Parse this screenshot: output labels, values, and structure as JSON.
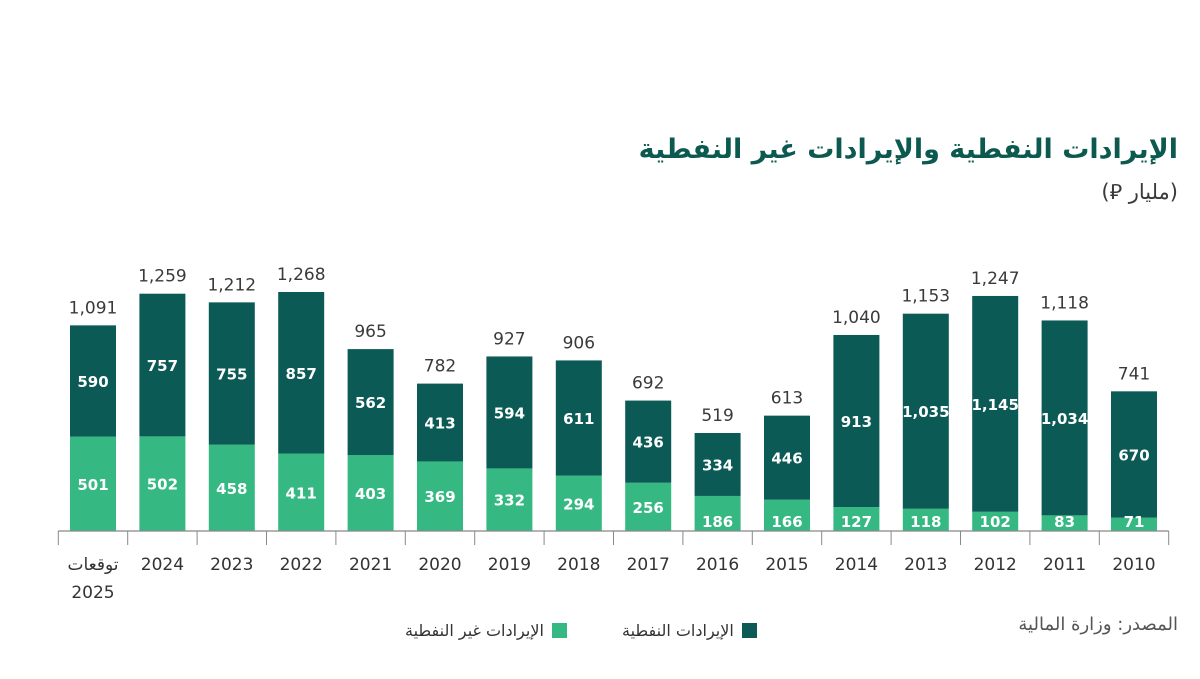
{
  "title": "الإيرادات النفطية والإيرادات غير النفطية",
  "subtitle": "(مليار ⃁)",
  "source": "المصدر: وزارة المالية",
  "colors": {
    "oil": "#0c5a55",
    "non_oil": "#35b882",
    "axis": "#333333",
    "totals": "#3a3a3a"
  },
  "chart_data": {
    "type": "bar",
    "stacked": true,
    "x_direction": "right-to-left",
    "categories": [
      "2010",
      "2011",
      "2012",
      "2013",
      "2014",
      "2015",
      "2016",
      "2017",
      "2018",
      "2019",
      "2020",
      "2021",
      "2022",
      "2023",
      "2024",
      "توقعات 2025"
    ],
    "series": [
      {
        "name": "الإيرادات غير النفطية",
        "key": "non_oil",
        "values": [
          71,
          83,
          102,
          118,
          127,
          166,
          186,
          256,
          294,
          332,
          369,
          403,
          411,
          458,
          502,
          501
        ],
        "labels": [
          "71",
          "83",
          "102",
          "118",
          "127",
          "166",
          "186",
          "256",
          "294",
          "332",
          "369",
          "403",
          "411",
          "458",
          "502",
          "501"
        ]
      },
      {
        "name": "الإيرادات النفطية",
        "key": "oil",
        "values": [
          670,
          1034,
          1145,
          1035,
          913,
          446,
          334,
          436,
          611,
          594,
          413,
          562,
          857,
          755,
          757,
          590
        ],
        "labels": [
          "670",
          "1,034",
          "1,145",
          "1,035",
          "913",
          "446",
          "334",
          "436",
          "611",
          "594",
          "413",
          "562",
          "857",
          "755",
          "757",
          "590"
        ]
      }
    ],
    "totals": [
      741,
      1118,
      1247,
      1153,
      1040,
      613,
      519,
      692,
      906,
      927,
      782,
      965,
      1268,
      1212,
      1259,
      1091
    ],
    "total_labels": [
      "741",
      "1,118",
      "1,247",
      "1,153",
      "1,040",
      "613",
      "519",
      "692",
      "906",
      "927",
      "782",
      "965",
      "1,268",
      "1,212",
      "1,259",
      "1,091"
    ],
    "ylim": [
      0,
      1268
    ],
    "legend_position": "bottom",
    "grid": false
  }
}
